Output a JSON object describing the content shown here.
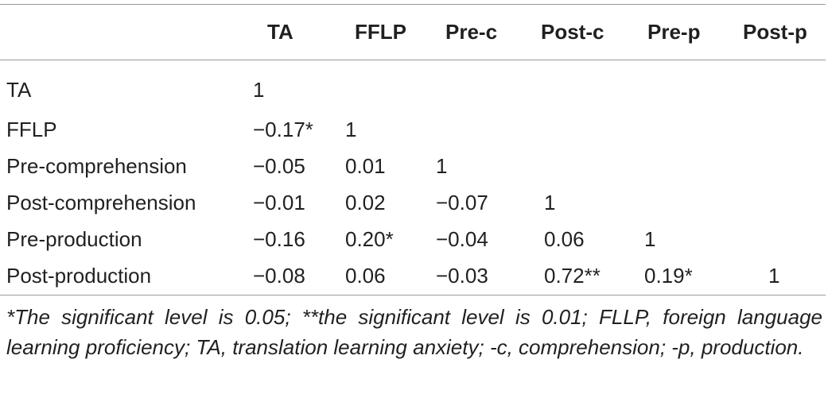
{
  "table": {
    "columns": [
      "",
      "TA",
      "FFLP",
      "Pre-c",
      "Post-c",
      "Pre-p",
      "Post-p"
    ],
    "rows": [
      {
        "label": "TA",
        "values": [
          "1",
          "",
          "",
          "",
          "",
          ""
        ]
      },
      {
        "label": "FFLP",
        "values": [
          "−0.17*",
          "1",
          "",
          "",
          "",
          ""
        ]
      },
      {
        "label": "Pre-comprehension",
        "values": [
          "−0.05",
          "0.01",
          "1",
          "",
          "",
          ""
        ]
      },
      {
        "label": "Post-comprehension",
        "values": [
          "−0.01",
          "0.02",
          "−0.07",
          "1",
          "",
          ""
        ]
      },
      {
        "label": "Pre-production",
        "values": [
          "−0.16",
          "0.20*",
          "−0.04",
          "0.06",
          "1",
          ""
        ]
      },
      {
        "label": "Post-production",
        "values": [
          "−0.08",
          "0.06",
          "−0.03",
          "0.72**",
          "0.19*",
          "1"
        ]
      }
    ]
  },
  "footnote": "*The significant level is 0.05; **the significant level is 0.01; FLLP, foreign language learning proficiency; TA, translation learning anxiety; -c, comprehension; -p, production."
}
